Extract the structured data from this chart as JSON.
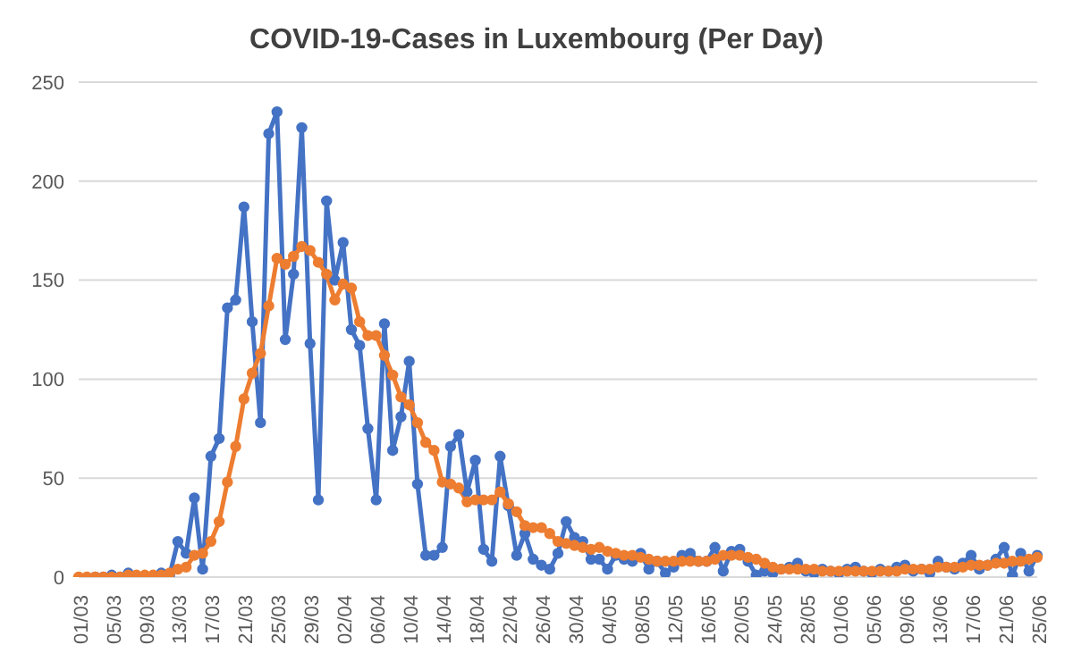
{
  "chart_data": {
    "type": "line",
    "title": "COVID-19-Cases in Luxembourg (Per Day)",
    "categories": [
      "01/03",
      null,
      null,
      null,
      "05/03",
      null,
      null,
      null,
      "09/03",
      null,
      null,
      null,
      "13/03",
      null,
      null,
      null,
      "17/03",
      null,
      null,
      null,
      "21/03",
      null,
      null,
      null,
      "25/03",
      null,
      null,
      null,
      "29/03",
      null,
      null,
      null,
      "02/04",
      null,
      null,
      null,
      "06/04",
      null,
      null,
      null,
      "10/04",
      null,
      null,
      null,
      "14/04",
      null,
      null,
      null,
      "18/04",
      null,
      null,
      null,
      "22/04",
      null,
      null,
      null,
      "26/04",
      null,
      null,
      null,
      "30/04",
      null,
      null,
      null,
      "04/05",
      null,
      null,
      null,
      "08/05",
      null,
      null,
      null,
      "12/05",
      null,
      null,
      null,
      "16/05",
      null,
      null,
      null,
      "20/05",
      null,
      null,
      null,
      "24/05",
      null,
      null,
      null,
      "28/05",
      null,
      null,
      null,
      "01/06",
      null,
      null,
      null,
      "05/06",
      null,
      null,
      null,
      "09/06",
      null,
      null,
      null,
      "13/06",
      null,
      null,
      null,
      "17/06",
      null,
      null,
      null,
      "21/06",
      null,
      null,
      null,
      "25/06"
    ],
    "series": [
      {
        "color": "#4472c4",
        "values": [
          null,
          null,
          0,
          0,
          1,
          0,
          2,
          0,
          null,
          0,
          2,
          1,
          18,
          12,
          40,
          4,
          61,
          70,
          136,
          140,
          187,
          129,
          78,
          224,
          235,
          120,
          153,
          227,
          118,
          39,
          190,
          150,
          169,
          125,
          117,
          75,
          39,
          128,
          64,
          81,
          109,
          47,
          11,
          11,
          15,
          66,
          72,
          43,
          59,
          14,
          8,
          61,
          36,
          11,
          22,
          9,
          6,
          4,
          12,
          28,
          20,
          18,
          9,
          9,
          4,
          11,
          9,
          8,
          12,
          4,
          8,
          2,
          5,
          11,
          12,
          8,
          8,
          15,
          3,
          13,
          14,
          8,
          1,
          3,
          2,
          4,
          5,
          7,
          3,
          2,
          4,
          3,
          2,
          4,
          5,
          3,
          2,
          4,
          3,
          5,
          6,
          3,
          4,
          2,
          8,
          5,
          4,
          7,
          11,
          4,
          6,
          9,
          15,
          1,
          12,
          3,
          11
        ]
      },
      {
        "color": "#ed7d31",
        "values": [
          0,
          0,
          0,
          0,
          0,
          0,
          1,
          1,
          1,
          1,
          1,
          2,
          4,
          5,
          11,
          12,
          18,
          28,
          48,
          66,
          90,
          103,
          113,
          137,
          161,
          158,
          162,
          167,
          165,
          159,
          153,
          140,
          148,
          146,
          129,
          122,
          122,
          112,
          102,
          91,
          87,
          78,
          68,
          64,
          48,
          47,
          45,
          38,
          39,
          39,
          39,
          43,
          37,
          33,
          26,
          25,
          25,
          22,
          18,
          17,
          16,
          15,
          14,
          15,
          13,
          12,
          11,
          11,
          10,
          9,
          8,
          8,
          8,
          8,
          8,
          8,
          8,
          9,
          11,
          11,
          11,
          10,
          9,
          7,
          5,
          4,
          4,
          4,
          4,
          4,
          3,
          3,
          3,
          3,
          3,
          3,
          3,
          3,
          3,
          3,
          4,
          4,
          4,
          4,
          5,
          5,
          5,
          5,
          6,
          6,
          6,
          7,
          7,
          8,
          8,
          9,
          10
        ]
      }
    ],
    "ylim": [
      0,
      250
    ],
    "yticks": [
      0,
      50,
      100,
      150,
      200,
      250
    ],
    "grid": "y",
    "marker": "circle"
  }
}
